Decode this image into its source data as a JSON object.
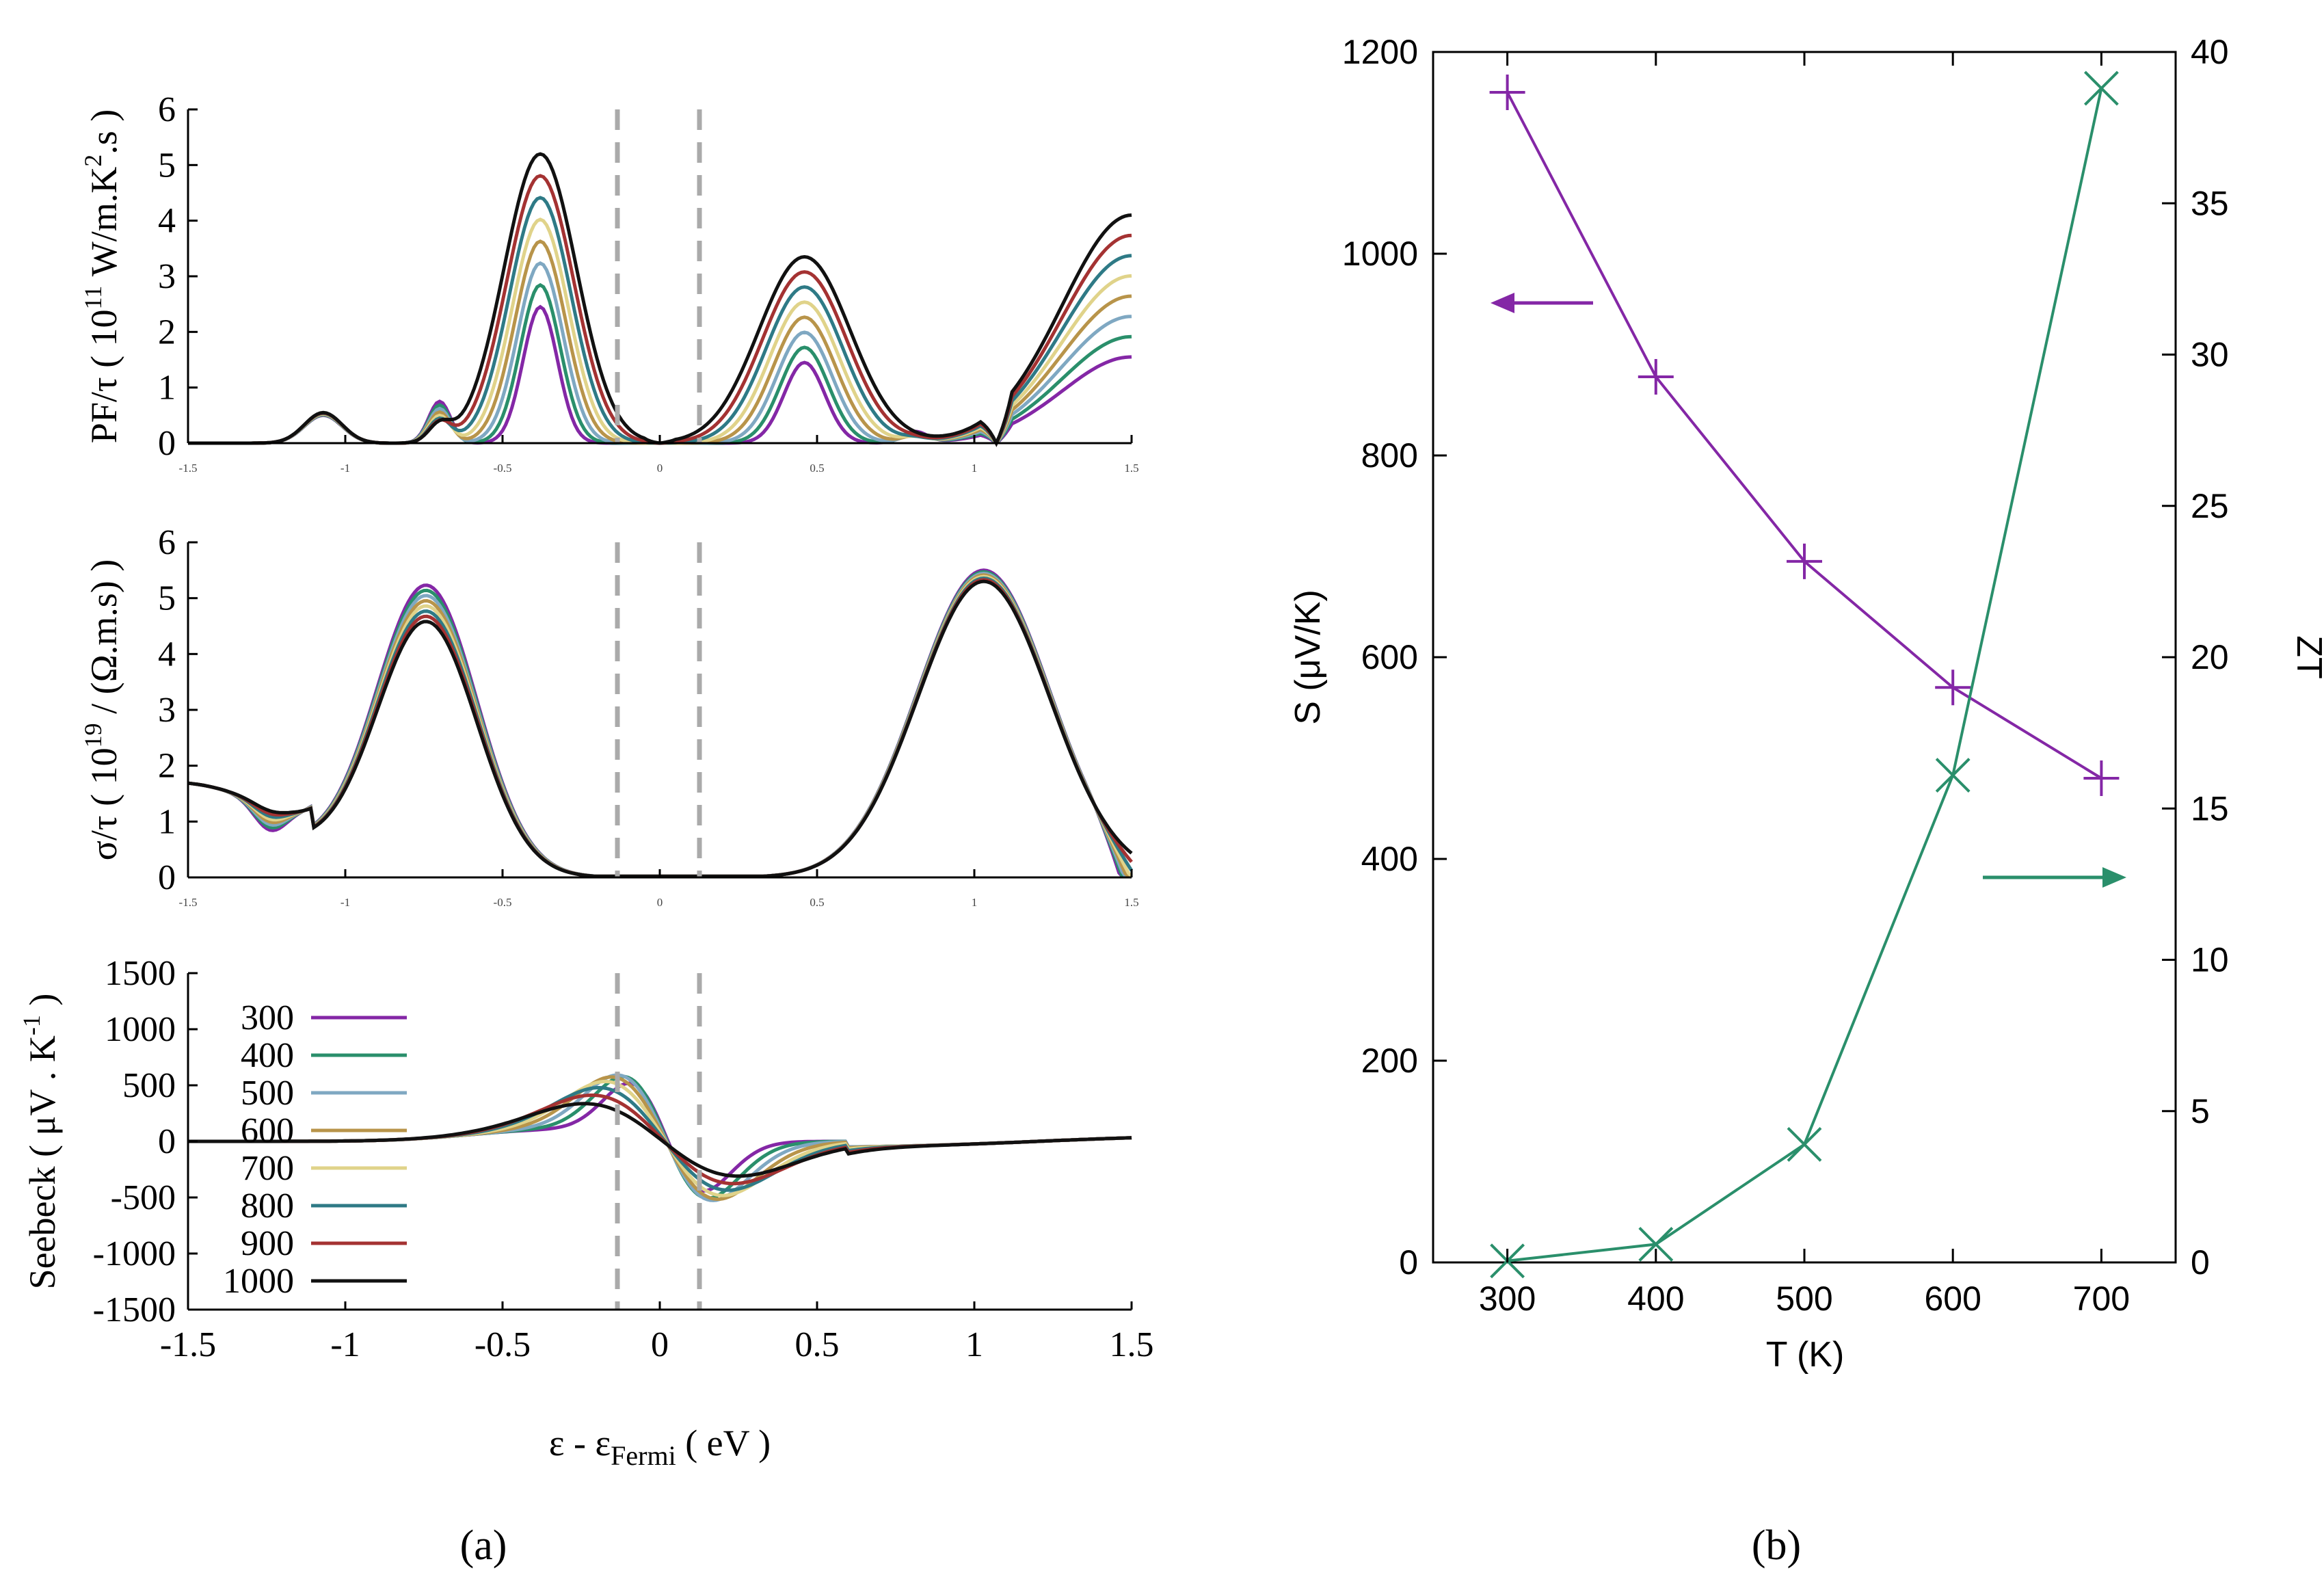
{
  "colors": {
    "300": "#8427a6",
    "400": "#2a8f6b",
    "500": "#7fa8c2",
    "600": "#b8944a",
    "700": "#e0d38a",
    "800": "#2e7a86",
    "900": "#a43232",
    "1000": "#111111",
    "dashed": "#aaaaaa",
    "S_curve": "#8427a6",
    "ZT_curve": "#2a8f6b"
  },
  "panel_labels": {
    "a": "(a)",
    "b": "(b)"
  },
  "chart_data": [
    {
      "type": "line",
      "panel": "a-top",
      "ylabel": "PF/τ ( 10^11 W/m.K^2.s )",
      "ylabel_parts": {
        "prefix": "PF/τ ( 10",
        "exp1": "11",
        "mid": " W/m.K",
        "exp2": "2",
        "suffix": ".s )"
      },
      "xlim": [
        -1.5,
        1.5
      ],
      "ylim": [
        0,
        6
      ],
      "yticks": [
        "0",
        "1",
        "2",
        "3",
        "4",
        "5",
        "6"
      ],
      "xticks": [
        "-1.5",
        "-1",
        "-0.5",
        "0",
        "0.5",
        "1",
        "1.5"
      ],
      "dashed_lines_x": [
        -0.13,
        0.13
      ],
      "series_temperatures": [
        "300",
        "400",
        "500",
        "600",
        "700",
        "800",
        "900",
        "1000"
      ]
    },
    {
      "type": "line",
      "panel": "a-middle",
      "ylabel": "σ/τ ( 10^19 / (Ω.m.s) )",
      "ylabel_parts": {
        "prefix": "σ/τ ( 10",
        "exp1": "19",
        "suffix": " / (Ω.m.s) )"
      },
      "xlim": [
        -1.5,
        1.5
      ],
      "ylim": [
        0,
        6
      ],
      "yticks": [
        "0",
        "1",
        "2",
        "3",
        "4",
        "5",
        "6"
      ],
      "xticks": [
        "-1.5",
        "-1",
        "-0.5",
        "0",
        "0.5",
        "1",
        "1.5"
      ],
      "dashed_lines_x": [
        -0.13,
        0.13
      ]
    },
    {
      "type": "line",
      "panel": "a-bottom",
      "ylabel": "Seebeck ( μV . K^-1 )",
      "ylabel_parts": {
        "prefix": "Seebeck ( μV . K",
        "exp1": "-1",
        "suffix": " )"
      },
      "xlabel": "ε - ε_Fermi ( eV )",
      "xlabel_parts": {
        "prefix": "ε - ε",
        "sub": "Fermi",
        "suffix": " ( eV )"
      },
      "xlim": [
        -1.5,
        1.5
      ],
      "ylim": [
        -1500,
        1500
      ],
      "yticks": [
        "-1500",
        "-1000",
        "-500",
        "0",
        "500",
        "1000",
        "1500"
      ],
      "xticks": [
        "-1.5",
        "-1",
        "-0.5",
        "0",
        "0.5",
        "1",
        "1.5"
      ],
      "dashed_lines_x": [
        -0.13,
        0.13
      ],
      "legend": [
        "300",
        "400",
        "500",
        "600",
        "700",
        "800",
        "900",
        "1000"
      ],
      "legend_position": "top-left"
    },
    {
      "type": "line",
      "panel": "b",
      "xlabel": "T (K)",
      "ylabel": "S (μV/K)",
      "y2label": "ZT",
      "x": [
        300,
        400,
        500,
        600,
        700
      ],
      "xlim": [
        250,
        750
      ],
      "xticks": [
        "300",
        "400",
        "500",
        "600",
        "700"
      ],
      "ylim": [
        0,
        1200
      ],
      "yticks": [
        "0",
        "200",
        "400",
        "600",
        "800",
        "1000",
        "1200"
      ],
      "y2lim": [
        0,
        40
      ],
      "y2ticks": [
        "0",
        "5",
        "10",
        "15",
        "20",
        "25",
        "30",
        "35",
        "40"
      ],
      "series": [
        {
          "name": "S",
          "axis": "left",
          "marker": "plus",
          "values": [
            1160,
            878,
            695,
            570,
            480
          ]
        },
        {
          "name": "ZT",
          "axis": "right",
          "marker": "cross",
          "values": [
            0.05,
            0.6,
            3.9,
            16.1,
            38.8
          ]
        }
      ]
    }
  ]
}
